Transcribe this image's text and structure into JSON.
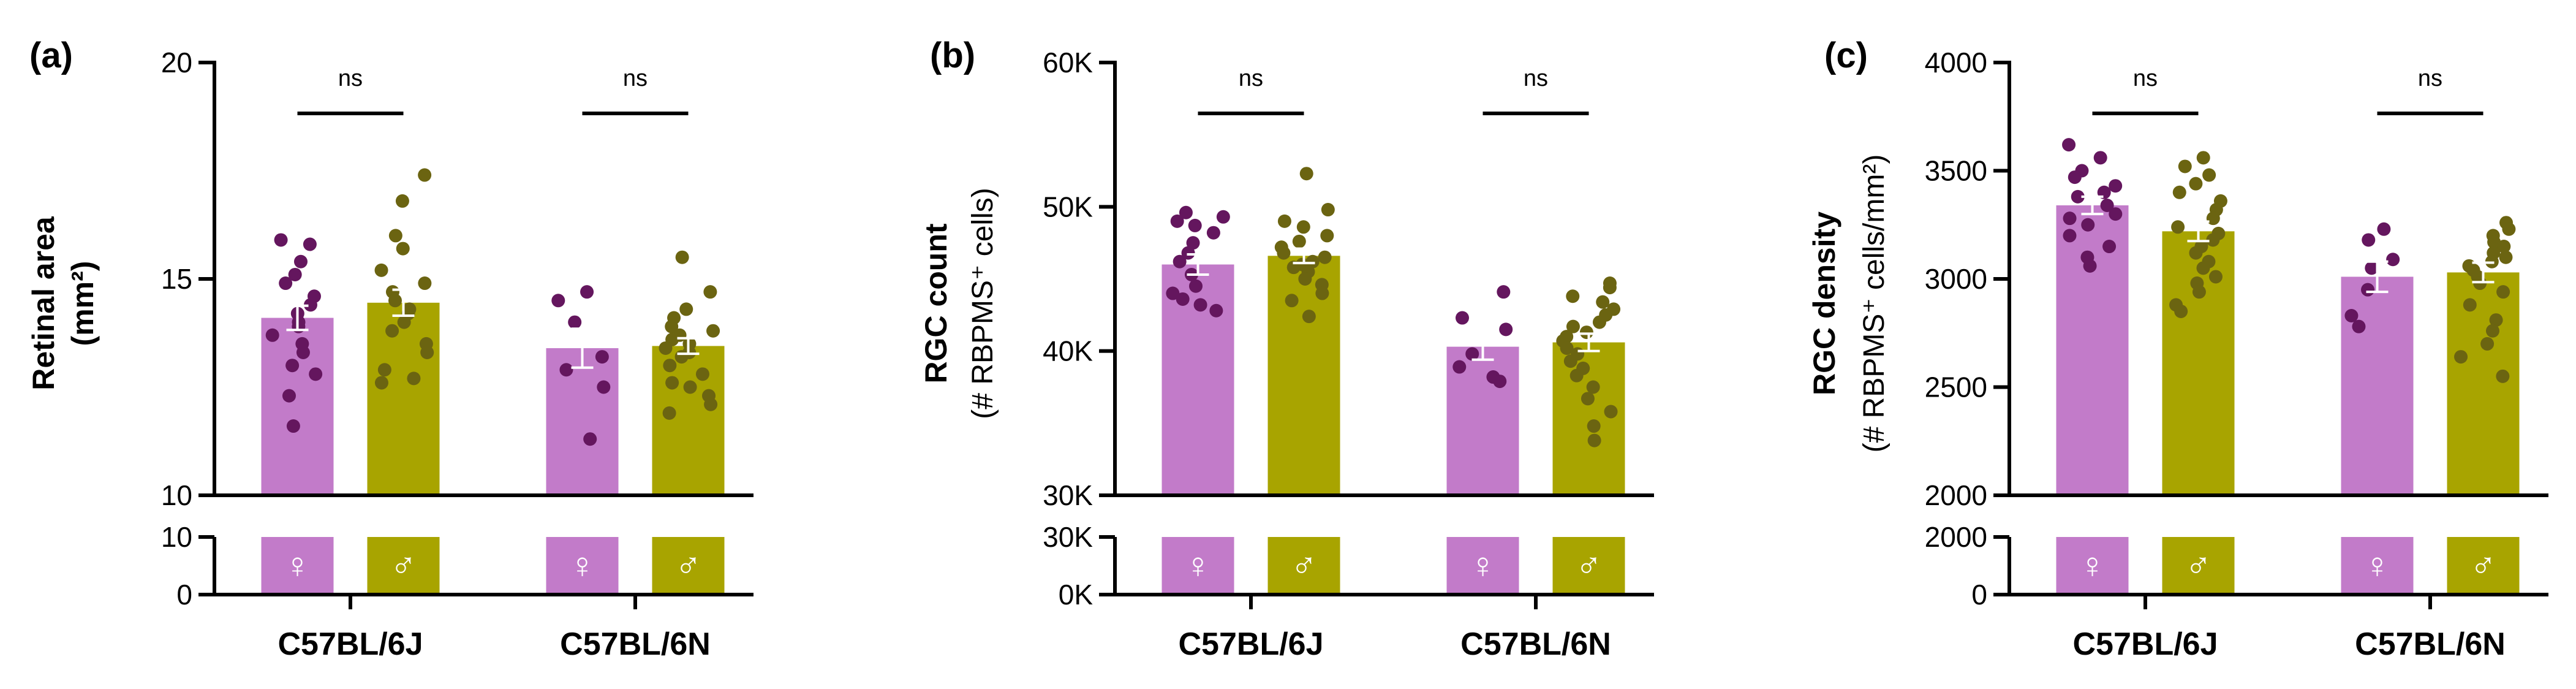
{
  "colors": {
    "female": "#c27bc9",
    "male": "#a8a400",
    "female_dot": "#64165e",
    "male_dot": "#6b6411",
    "error_bar": "#ffffff",
    "axis": "#000000"
  },
  "legend": {
    "female_symbol": "♀",
    "male_symbol": "♂"
  },
  "chart_data": [
    {
      "id": "a",
      "panel_label": "(a)",
      "type": "bar",
      "ylabel_line1": "Retinal area",
      "ylabel_line2": "(mm²)",
      "upper": {
        "ylim": [
          10,
          20
        ],
        "ticks": [
          10,
          15,
          20
        ],
        "tick_labels": [
          "10",
          "15",
          "20"
        ]
      },
      "lower": {
        "ylim": [
          0,
          10
        ],
        "ticks": [
          0,
          10
        ],
        "tick_labels": [
          "0",
          "10"
        ]
      },
      "categories": [
        "C57BL/6J",
        "C57BL/6N"
      ],
      "significance": [
        "ns",
        "ns"
      ],
      "series": [
        {
          "name": "Female",
          "sex": "female",
          "means": [
            14.1,
            13.4
          ],
          "sem": [
            0.28,
            0.45
          ],
          "points": [
            [
              15.9,
              15.8,
              15.4,
              15.1,
              14.9,
              14.6,
              14.4,
              14.2,
              14.0,
              13.9,
              13.7,
              13.5,
              13.3,
              13.0,
              12.8,
              12.3,
              11.6
            ],
            [
              14.7,
              14.5,
              14.0,
              13.2,
              12.9,
              12.5,
              11.3
            ]
          ]
        },
        {
          "name": "Male",
          "sex": "male",
          "means": [
            14.45,
            13.45
          ],
          "sem": [
            0.3,
            0.18
          ],
          "points": [
            [
              17.4,
              16.8,
              16.0,
              15.7,
              15.2,
              14.9,
              14.7,
              14.5,
              14.3,
              14.2,
              14.0,
              13.8,
              13.5,
              13.3,
              12.9,
              12.7,
              12.6
            ],
            [
              15.5,
              14.7,
              14.3,
              14.1,
              13.9,
              13.8,
              13.7,
              13.6,
              13.5,
              13.4,
              13.3,
              13.2,
              13.0,
              12.8,
              12.6,
              12.5,
              12.3,
              12.1,
              11.9
            ]
          ]
        }
      ]
    },
    {
      "id": "b",
      "panel_label": "(b)",
      "type": "bar",
      "ylabel_line1": "RGC count",
      "ylabel_line2": "(# RBPMS⁺ cells)",
      "upper": {
        "ylim": [
          30000,
          60000
        ],
        "ticks": [
          30000,
          40000,
          50000,
          60000
        ],
        "tick_labels": [
          "30K",
          "40K",
          "50K",
          "60K"
        ]
      },
      "lower": {
        "ylim": [
          0,
          30000
        ],
        "ticks": [
          0,
          30000
        ],
        "tick_labels": [
          "0K",
          "30K"
        ]
      },
      "categories": [
        "C57BL/6J",
        "C57BL/6N"
      ],
      "significance": [
        "ns",
        "ns"
      ],
      "series": [
        {
          "name": "Female",
          "sex": "female",
          "means": [
            46000,
            40300
          ],
          "sem": [
            700,
            900
          ],
          "points": [
            [
              49600,
              49300,
              49000,
              48700,
              48200,
              47500,
              46800,
              46200,
              45300,
              44500,
              44000,
              43600,
              43200,
              42800
            ],
            [
              44100,
              42300,
              41500,
              39800,
              38900,
              38200,
              37900
            ]
          ]
        },
        {
          "name": "Male",
          "sex": "male",
          "means": [
            46600,
            40600
          ],
          "sem": [
            500,
            600
          ],
          "points": [
            [
              52300,
              49800,
              49000,
              48600,
              48000,
              47600,
              47200,
              46800,
              46500,
              46200,
              46000,
              45800,
              45500,
              45000,
              44600,
              44000,
              43500,
              42400
            ],
            [
              44700,
              44400,
              43800,
              43400,
              42900,
              42500,
              42000,
              41700,
              41300,
              41000,
              40700,
              40200,
              39800,
              39300,
              38800,
              38300,
              37500,
              36700,
              35800,
              34800,
              33800
            ]
          ]
        }
      ]
    },
    {
      "id": "c",
      "panel_label": "(c)",
      "type": "bar",
      "ylabel_line1": "RGC density",
      "ylabel_line2": "(# RBPMS⁺ cells/mm²)",
      "upper": {
        "ylim": [
          2000,
          4000
        ],
        "ticks": [
          2000,
          2500,
          3000,
          3500,
          4000
        ],
        "tick_labels": [
          "2000",
          "2500",
          "3000",
          "3500",
          "4000"
        ]
      },
      "lower": {
        "ylim": [
          0,
          2000
        ],
        "ticks": [
          0,
          2000
        ],
        "tick_labels": [
          "0",
          "2000"
        ]
      },
      "categories": [
        "C57BL/6J",
        "C57BL/6N"
      ],
      "significance": [
        "ns",
        "ns"
      ],
      "series": [
        {
          "name": "Female",
          "sex": "female",
          "means": [
            3340,
            3010
          ],
          "sem": [
            40,
            70
          ],
          "points": [
            [
              3620,
              3560,
              3500,
              3470,
              3430,
              3400,
              3380,
              3340,
              3300,
              3280,
              3250,
              3200,
              3150,
              3100,
              3060
            ],
            [
              3230,
              3180,
              3090,
              3050,
              2950,
              2830,
              2780
            ]
          ]
        },
        {
          "name": "Male",
          "sex": "male",
          "means": [
            3220,
            3030
          ],
          "sem": [
            45,
            45
          ],
          "points": [
            [
              3560,
              3520,
              3480,
              3440,
              3400,
              3360,
              3320,
              3280,
              3240,
              3210,
              3180,
              3150,
              3120,
              3080,
              3050,
              3010,
              2980,
              2940,
              2880,
              2850
            ],
            [
              3260,
              3230,
              3200,
              3170,
              3150,
              3120,
              3100,
              3080,
              3060,
              3040,
              3010,
              2980,
              2940,
              2880,
              2810,
              2760,
              2700,
              2640,
              2550
            ]
          ]
        }
      ]
    }
  ]
}
